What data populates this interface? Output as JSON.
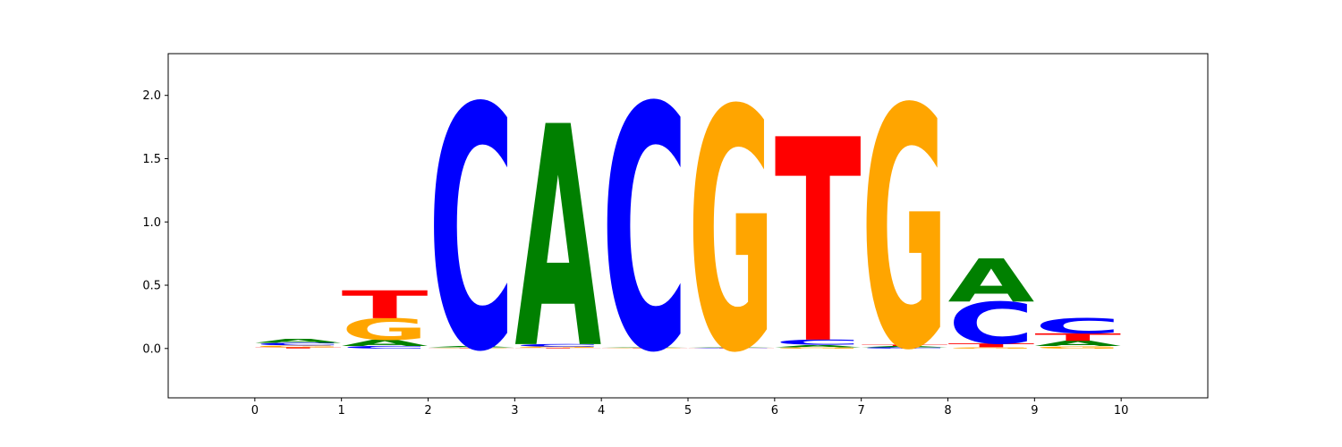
{
  "chart_data": {
    "type": "sequence-logo",
    "title": "",
    "xlabel": "",
    "ylabel": "",
    "xlim": [
      -1,
      11
    ],
    "ylim": [
      -0.39,
      2.33
    ],
    "x_ticks": [
      0,
      1,
      2,
      3,
      4,
      5,
      6,
      7,
      8,
      9,
      10
    ],
    "y_ticks": [
      0.0,
      0.5,
      1.0,
      1.5,
      2.0
    ],
    "y_tick_labels": [
      "0.0",
      "0.5",
      "1.0",
      "1.5",
      "2.0"
    ],
    "colors": {
      "A": "#008000",
      "C": "#0000ff",
      "G": "#ffa500",
      "T": "#ff0000"
    },
    "positions": [
      {
        "x0": 0,
        "x1": 1,
        "letters": [
          {
            "base": "T",
            "height": 0.01
          },
          {
            "base": "G",
            "height": 0.015
          },
          {
            "base": "C",
            "height": 0.02
          },
          {
            "base": "A",
            "height": 0.03
          }
        ]
      },
      {
        "x0": 1,
        "x1": 2,
        "letters": [
          {
            "base": "C",
            "height": 0.02
          },
          {
            "base": "A",
            "height": 0.05
          },
          {
            "base": "G",
            "height": 0.17
          },
          {
            "base": "T",
            "height": 0.22
          }
        ]
      },
      {
        "x0": 2,
        "x1": 3,
        "letters": [
          {
            "base": "T",
            "height": 0.003
          },
          {
            "base": "G",
            "height": 0.005
          },
          {
            "base": "A",
            "height": 0.01
          },
          {
            "base": "C",
            "height": 1.92
          }
        ]
      },
      {
        "x0": 3,
        "x1": 4,
        "letters": [
          {
            "base": "T",
            "height": 0.005
          },
          {
            "base": "G",
            "height": 0.01
          },
          {
            "base": "C",
            "height": 0.02
          },
          {
            "base": "A",
            "height": 1.75
          }
        ]
      },
      {
        "x0": 4,
        "x1": 5,
        "letters": [
          {
            "base": "T",
            "height": 0.003
          },
          {
            "base": "G",
            "height": 0.004
          },
          {
            "base": "A",
            "height": 0.005
          },
          {
            "base": "C",
            "height": 1.93
          }
        ]
      },
      {
        "x0": 5,
        "x1": 6,
        "letters": [
          {
            "base": "T",
            "height": 0.002
          },
          {
            "base": "C",
            "height": 0.003
          },
          {
            "base": "A",
            "height": 0.005
          },
          {
            "base": "G",
            "height": 1.91
          }
        ]
      },
      {
        "x0": 6,
        "x1": 7,
        "letters": [
          {
            "base": "G",
            "height": 0.01
          },
          {
            "base": "A",
            "height": 0.02
          },
          {
            "base": "C",
            "height": 0.04
          },
          {
            "base": "T",
            "height": 1.61
          }
        ]
      },
      {
        "x0": 7,
        "x1": 8,
        "letters": [
          {
            "base": "C",
            "height": 0.01
          },
          {
            "base": "A",
            "height": 0.01
          },
          {
            "base": "T",
            "height": 0.01
          },
          {
            "base": "G",
            "height": 1.9
          }
        ]
      },
      {
        "x0": 8,
        "x1": 9,
        "letters": [
          {
            "base": "G",
            "height": 0.01
          },
          {
            "base": "T",
            "height": 0.03
          },
          {
            "base": "C",
            "height": 0.33
          },
          {
            "base": "A",
            "height": 0.34
          }
        ]
      },
      {
        "x0": 9,
        "x1": 10,
        "letters": [
          {
            "base": "G",
            "height": 0.02
          },
          {
            "base": "A",
            "height": 0.04
          },
          {
            "base": "T",
            "height": 0.06
          },
          {
            "base": "C",
            "height": 0.12
          }
        ]
      }
    ]
  }
}
